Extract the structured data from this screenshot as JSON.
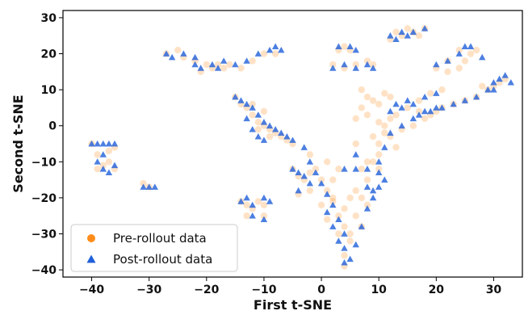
{
  "chart_data": {
    "type": "scatter",
    "title": "",
    "xlabel": "First t-SNE",
    "ylabel": "Second t-SNE",
    "xlim": [
      -45,
      35
    ],
    "ylim": [
      -42,
      32
    ],
    "xticks": [
      -40,
      -30,
      -20,
      -10,
      0,
      10,
      20,
      30
    ],
    "yticks": [
      -40,
      -30,
      -20,
      -10,
      0,
      10,
      20,
      30
    ],
    "xtick_labels": [
      "−40",
      "−30",
      "−20",
      "−10",
      "0",
      "10",
      "20",
      "30"
    ],
    "ytick_labels": [
      "−40",
      "−30",
      "−20",
      "−10",
      "0",
      "10",
      "20",
      "30"
    ],
    "grid": false,
    "legend_position": "bottom-left",
    "series": [
      {
        "name": "Pre-rollout data",
        "marker": "circle",
        "color": "#ff8c1a",
        "alpha": 0.25,
        "points": [
          [
            -40,
            -5
          ],
          [
            -39,
            -8
          ],
          [
            -38,
            -11
          ],
          [
            -37,
            -7
          ],
          [
            -36,
            -6
          ],
          [
            -37,
            -10
          ],
          [
            -36,
            -12
          ],
          [
            -39,
            -12
          ],
          [
            -31,
            -16
          ],
          [
            -30,
            -17
          ],
          [
            -27,
            20
          ],
          [
            -25,
            21
          ],
          [
            -24,
            19
          ],
          [
            -22,
            18
          ],
          [
            -20,
            17
          ],
          [
            -19,
            16
          ],
          [
            -18,
            17
          ],
          [
            -16,
            17
          ],
          [
            -14,
            16
          ],
          [
            -12,
            18
          ],
          [
            -10,
            20
          ],
          [
            -8,
            20
          ],
          [
            -21,
            15
          ],
          [
            -17,
            16
          ],
          [
            -15,
            8
          ],
          [
            -14,
            6
          ],
          [
            -13,
            5
          ],
          [
            -12,
            3
          ],
          [
            -11,
            1
          ],
          [
            -10,
            0
          ],
          [
            -9,
            -1
          ],
          [
            -8,
            -2
          ],
          [
            -7,
            -3
          ],
          [
            -6,
            -4
          ],
          [
            -5,
            -5
          ],
          [
            -12,
            6
          ],
          [
            -10,
            4
          ],
          [
            -11,
            -1
          ],
          [
            -9,
            -3
          ],
          [
            -14,
            -21
          ],
          [
            -13,
            -22
          ],
          [
            -12,
            -23
          ],
          [
            -11,
            -21
          ],
          [
            -10,
            -22
          ],
          [
            -13,
            -25
          ],
          [
            -10,
            -25
          ],
          [
            -5,
            -12
          ],
          [
            -4,
            -14
          ],
          [
            -3,
            -15
          ],
          [
            -2,
            -13
          ],
          [
            -4,
            -19
          ],
          [
            -2,
            -18
          ],
          [
            -2,
            -8
          ],
          [
            -1,
            -12
          ],
          [
            0,
            -15
          ],
          [
            1,
            -18
          ],
          [
            2,
            -21
          ],
          [
            3,
            -25
          ],
          [
            4,
            -28
          ],
          [
            5,
            -32
          ],
          [
            4,
            -36
          ],
          [
            4,
            -39
          ],
          [
            2,
            -20
          ],
          [
            3,
            -12
          ],
          [
            1,
            -10
          ],
          [
            2,
            -15
          ],
          [
            0,
            -22
          ],
          [
            1,
            -26
          ],
          [
            3,
            -30
          ],
          [
            5,
            -30
          ],
          [
            6,
            -25
          ],
          [
            7,
            -20
          ],
          [
            8,
            -15
          ],
          [
            9,
            -10
          ],
          [
            10,
            -5
          ],
          [
            8,
            -10
          ],
          [
            6,
            -18
          ],
          [
            7,
            -12
          ],
          [
            9,
            -3
          ],
          [
            5,
            -20
          ],
          [
            6,
            -5
          ],
          [
            8,
            -22
          ],
          [
            10,
            -12
          ],
          [
            7,
            -28
          ],
          [
            4,
            -23
          ],
          [
            11,
            0
          ],
          [
            12,
            2
          ],
          [
            13,
            3
          ],
          [
            15,
            5
          ],
          [
            17,
            7
          ],
          [
            19,
            9
          ],
          [
            21,
            10
          ],
          [
            10,
            6
          ],
          [
            11,
            9
          ],
          [
            12,
            8
          ],
          [
            10,
            -8
          ],
          [
            12,
            -3
          ],
          [
            14,
            -1
          ],
          [
            16,
            0
          ],
          [
            18,
            2
          ],
          [
            20,
            4
          ],
          [
            13,
            -6
          ],
          [
            11,
            -2
          ],
          [
            19,
            3
          ],
          [
            21,
            5
          ],
          [
            23,
            6
          ],
          [
            25,
            7
          ],
          [
            27,
            8
          ],
          [
            17,
            4
          ],
          [
            12,
            24
          ],
          [
            14,
            25
          ],
          [
            16,
            26
          ],
          [
            18,
            27
          ],
          [
            13,
            26
          ],
          [
            15,
            27
          ],
          [
            17,
            25
          ],
          [
            3,
            21
          ],
          [
            4,
            22
          ],
          [
            5,
            21
          ],
          [
            2,
            17
          ],
          [
            4,
            16
          ],
          [
            6,
            17
          ],
          [
            8,
            18
          ],
          [
            9,
            17
          ],
          [
            20,
            16
          ],
          [
            22,
            15
          ],
          [
            24,
            16
          ],
          [
            25,
            18
          ],
          [
            26,
            20
          ],
          [
            27,
            21
          ],
          [
            22,
            18
          ],
          [
            24,
            21
          ],
          [
            29,
            10
          ],
          [
            31,
            12
          ],
          [
            32,
            13
          ],
          [
            28,
            11
          ],
          [
            30,
            11
          ],
          [
            7,
            10
          ],
          [
            8,
            8
          ],
          [
            9,
            7
          ],
          [
            7,
            5
          ],
          [
            6,
            2
          ],
          [
            8,
            3
          ],
          [
            10,
            1
          ]
        ]
      },
      {
        "name": "Post-rollout data",
        "marker": "triangle",
        "color": "#1f5fd9",
        "alpha": 0.8,
        "points": [
          [
            -40,
            -5
          ],
          [
            -39,
            -5
          ],
          [
            -38,
            -5
          ],
          [
            -37,
            -5
          ],
          [
            -36,
            -5
          ],
          [
            -39,
            -10
          ],
          [
            -38,
            -12
          ],
          [
            -37,
            -13
          ],
          [
            -36,
            -11
          ],
          [
            -38,
            -8
          ],
          [
            -31,
            -17
          ],
          [
            -30,
            -17
          ],
          [
            -29,
            -17
          ],
          [
            -27,
            20
          ],
          [
            -26,
            19
          ],
          [
            -24,
            20
          ],
          [
            -22,
            19
          ],
          [
            -21,
            16
          ],
          [
            -19,
            17
          ],
          [
            -17,
            18
          ],
          [
            -15,
            17
          ],
          [
            -13,
            18
          ],
          [
            -11,
            20
          ],
          [
            -9,
            21
          ],
          [
            -8,
            22
          ],
          [
            -7,
            21
          ],
          [
            -22,
            17
          ],
          [
            -18,
            16
          ],
          [
            -15,
            8
          ],
          [
            -14,
            7
          ],
          [
            -13,
            6
          ],
          [
            -12,
            5
          ],
          [
            -11,
            3
          ],
          [
            -10,
            1
          ],
          [
            -9,
            0
          ],
          [
            -8,
            -1
          ],
          [
            -7,
            -2
          ],
          [
            -6,
            -3
          ],
          [
            -5,
            -4
          ],
          [
            -3,
            -6
          ],
          [
            -13,
            2
          ],
          [
            -12,
            -1
          ],
          [
            -11,
            -3
          ],
          [
            -10,
            -4
          ],
          [
            -14,
            -21
          ],
          [
            -13,
            -20
          ],
          [
            -12,
            -22
          ],
          [
            -10,
            -20
          ],
          [
            -9,
            -21
          ],
          [
            -12,
            -25
          ],
          [
            -10,
            -26
          ],
          [
            -5,
            -12
          ],
          [
            -4,
            -13
          ],
          [
            -3,
            -14
          ],
          [
            -2,
            -16
          ],
          [
            -4,
            -18
          ],
          [
            -2,
            -10
          ],
          [
            -1,
            -13
          ],
          [
            0,
            -16
          ],
          [
            1,
            -19
          ],
          [
            2,
            -22
          ],
          [
            3,
            -26
          ],
          [
            4,
            -30
          ],
          [
            4,
            -34
          ],
          [
            4,
            -38
          ],
          [
            5,
            -37
          ],
          [
            6,
            -33
          ],
          [
            7,
            -28
          ],
          [
            8,
            -23
          ],
          [
            9,
            -18
          ],
          [
            10,
            -13
          ],
          [
            1,
            -24
          ],
          [
            2,
            -28
          ],
          [
            3,
            -32
          ],
          [
            4,
            -12
          ],
          [
            6,
            -12
          ],
          [
            8,
            -12
          ],
          [
            9,
            -20
          ],
          [
            10,
            -10
          ],
          [
            11,
            -6
          ],
          [
            12,
            -2
          ],
          [
            14,
            0
          ],
          [
            16,
            2
          ],
          [
            18,
            4
          ],
          [
            20,
            5
          ],
          [
            12,
            4
          ],
          [
            14,
            5
          ],
          [
            16,
            6
          ],
          [
            18,
            8
          ],
          [
            20,
            9
          ],
          [
            15,
            7
          ],
          [
            13,
            6
          ],
          [
            17,
            3
          ],
          [
            19,
            4
          ],
          [
            21,
            5
          ],
          [
            23,
            6
          ],
          [
            25,
            7
          ],
          [
            27,
            8
          ],
          [
            12,
            25
          ],
          [
            14,
            26
          ],
          [
            16,
            26
          ],
          [
            18,
            27
          ],
          [
            13,
            24
          ],
          [
            15,
            25
          ],
          [
            3,
            22
          ],
          [
            5,
            22
          ],
          [
            6,
            21
          ],
          [
            4,
            17
          ],
          [
            6,
            16
          ],
          [
            8,
            17
          ],
          [
            9,
            16
          ],
          [
            2,
            16
          ],
          [
            20,
            17
          ],
          [
            22,
            18
          ],
          [
            24,
            20
          ],
          [
            25,
            22
          ],
          [
            26,
            22
          ],
          [
            28,
            19
          ],
          [
            29,
            10
          ],
          [
            30,
            12
          ],
          [
            31,
            13
          ],
          [
            32,
            14
          ],
          [
            33,
            12
          ],
          [
            30,
            10
          ],
          [
            8,
            -17
          ],
          [
            10,
            -17
          ],
          [
            11,
            -15
          ],
          [
            6,
            -8
          ]
        ]
      }
    ]
  }
}
